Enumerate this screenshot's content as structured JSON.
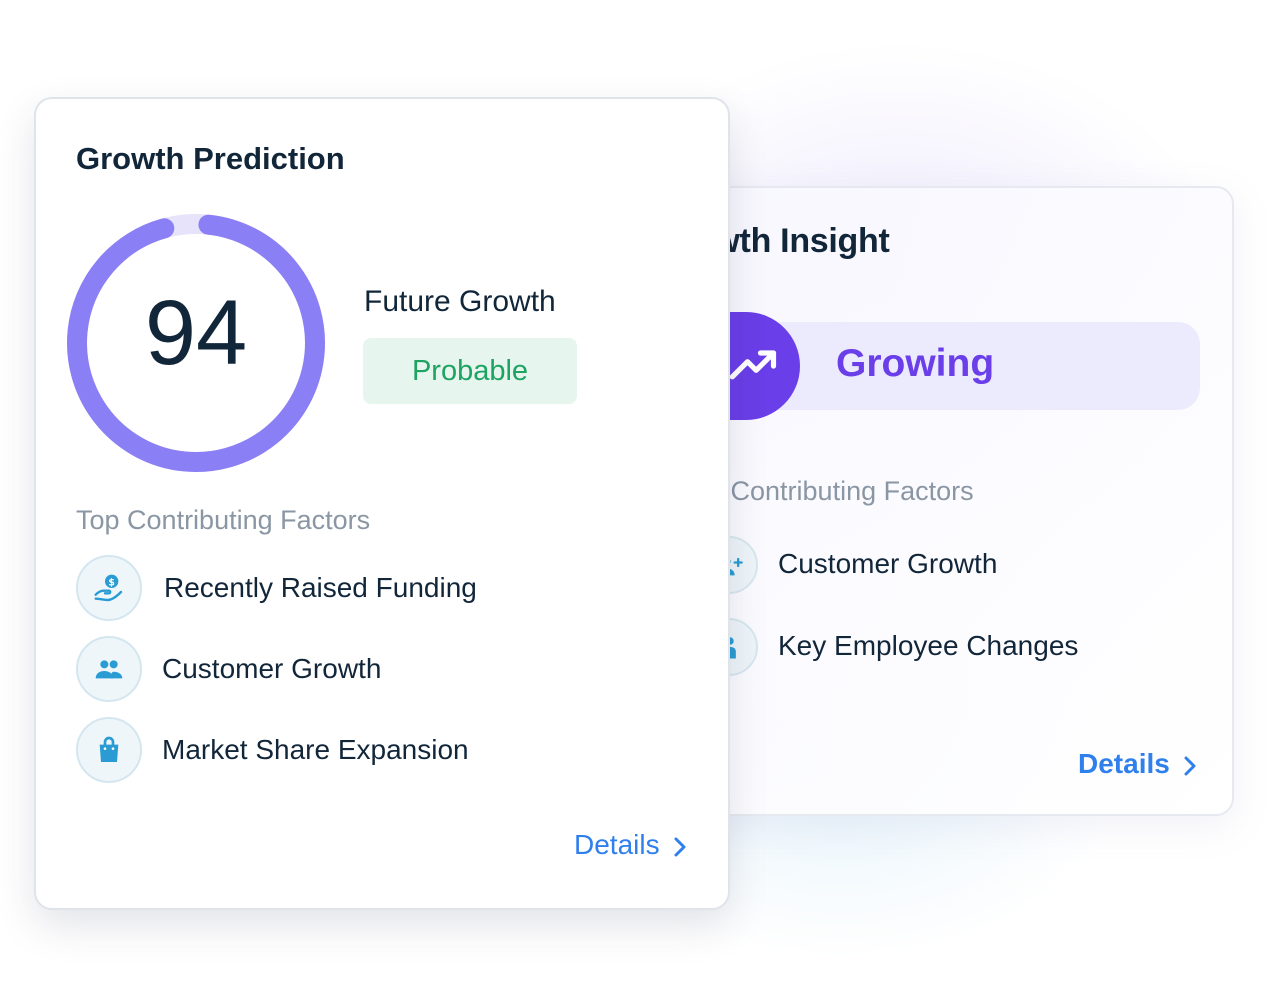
{
  "back_card": {
    "title": "rowth Insight",
    "status_label": "Growing",
    "factors_title": "p Contributing Factors",
    "factors": [
      {
        "label": "Customer Growth",
        "icon": "people-plus-icon"
      },
      {
        "label": "Key Employee Changes",
        "icon": "person-change-icon"
      }
    ],
    "details_label": "Details"
  },
  "front_card": {
    "title": "Growth Prediction",
    "score": "94",
    "score_fraction": 0.94,
    "future_label": "Future Growth",
    "future_value": "Probable",
    "factors_title": "Top Contributing Factors",
    "factors": [
      {
        "label": "Recently Raised Funding",
        "icon": "hand-coin-icon"
      },
      {
        "label": "Customer Growth",
        "icon": "people-icon"
      },
      {
        "label": "Market Share Expansion",
        "icon": "shopping-bag-icon"
      }
    ],
    "details_label": "Details"
  },
  "colors": {
    "gauge": "#8b7ff5",
    "gauge_track": "#e6e3fb",
    "accent_purple": "#6a3ee8",
    "success_green": "#1ea362",
    "link_blue": "#2f80ed",
    "icon_blue": "#2a9bd3"
  }
}
